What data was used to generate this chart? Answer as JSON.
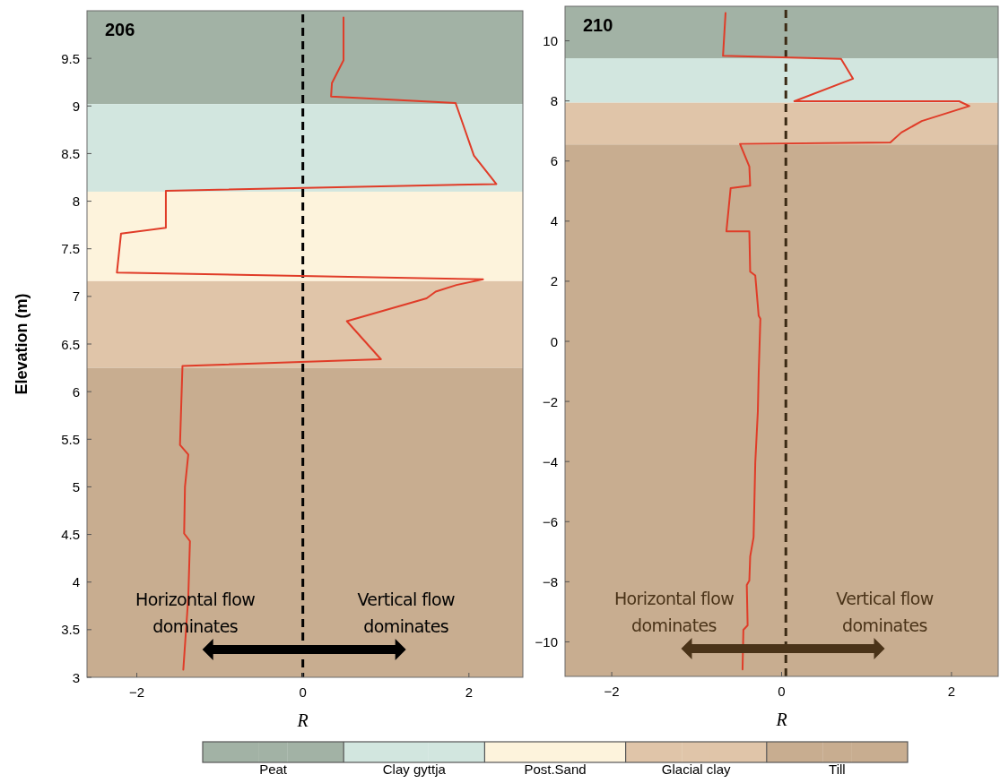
{
  "chart_data": [
    {
      "type": "line",
      "title": "206",
      "xlabel": "R",
      "ylabel": "Elevation (m)",
      "xlim": [
        -2.6,
        2.65
      ],
      "ylim": [
        3,
        10
      ],
      "xticks": [
        -2,
        0,
        2
      ],
      "yticks": [
        3,
        3.5,
        4,
        4.5,
        5,
        5.5,
        6,
        6.5,
        7,
        7.5,
        8,
        8.5,
        9,
        9.5
      ],
      "legend": "bottom",
      "series": [
        {
          "color": "#e03c28",
          "x": [
            0.49,
            0.49,
            0.35,
            0.34,
            1.84,
            1.9,
            2.06,
            2.33,
            -1.65,
            -1.65,
            -2.19,
            -2.24,
            2.17,
            1.85,
            1.6,
            1.49,
            0.53,
            0.94,
            -1.45,
            -1.48,
            -1.38,
            -1.42,
            -1.43,
            -1.36,
            -1.38,
            -1.44
          ],
          "values": [
            9.93,
            9.48,
            9.24,
            9.1,
            9.03,
            8.88,
            8.48,
            8.18,
            8.11,
            7.72,
            7.66,
            7.25,
            7.18,
            7.12,
            7.05,
            6.98,
            6.74,
            6.34,
            6.27,
            5.44,
            5.34,
            5.0,
            4.51,
            4.43,
            3.84,
            3.08
          ]
        }
      ],
      "bands": [
        {
          "axis": "y",
          "from": 9.02,
          "to": 10,
          "label": "Peat",
          "color": "#a2b2a5"
        },
        {
          "axis": "y",
          "from": 8.1,
          "to": 9.02,
          "label": "Clay gyttja",
          "color": "#d2e6df"
        },
        {
          "axis": "y",
          "from": 7.16,
          "to": 8.1,
          "label": "Post.Sand",
          "color": "#fdf3dc"
        },
        {
          "axis": "y",
          "from": 6.25,
          "to": 7.16,
          "label": "Glacial clay",
          "color": "#e0c5a9"
        },
        {
          "axis": "y",
          "from": 3,
          "to": 6.25,
          "label": "Till",
          "color": "#c8ad90"
        }
      ],
      "ref_lines": [
        {
          "axis": "x",
          "value": 0,
          "color": "#000000",
          "line_style": "dashed"
        }
      ],
      "annotations": [
        "Horizontal flow dominates",
        "Vertical flow dominates"
      ]
    },
    {
      "type": "line",
      "title": "210",
      "xlabel": "R",
      "xlim": [
        -2.55,
        2.55
      ],
      "ylim": [
        -11.15,
        11.15
      ],
      "xticks": [
        -2,
        0,
        2
      ],
      "yticks": [
        -10,
        -8,
        -6,
        -4,
        -2,
        0,
        2,
        4,
        6,
        8,
        10
      ],
      "series": [
        {
          "color": "#e03c28",
          "x": [
            -0.66,
            -0.69,
            0.7,
            0.84,
            0.15,
            2.09,
            2.21,
            1.65,
            1.41,
            1.28,
            -0.49,
            -0.38,
            -0.37,
            -0.6,
            -0.65,
            -0.38,
            -0.37,
            -0.31,
            -0.27,
            -0.25,
            -0.27,
            -0.28,
            -0.31,
            -0.33,
            -0.37,
            -0.38,
            -0.41,
            -0.4,
            -0.45,
            -0.46
          ],
          "values": [
            10.93,
            9.5,
            9.4,
            8.74,
            7.99,
            7.99,
            7.83,
            7.33,
            6.95,
            6.62,
            6.57,
            5.82,
            5.18,
            5.1,
            3.66,
            3.66,
            2.32,
            2.19,
            0.85,
            0.75,
            -1.08,
            -2.34,
            -4.03,
            -6.52,
            -7.16,
            -7.96,
            -8.11,
            -9.45,
            -9.6,
            -10.92
          ]
        }
      ],
      "bands": [
        {
          "axis": "y",
          "from": 9.42,
          "to": 11.15,
          "color": "#a2b2a5"
        },
        {
          "axis": "y",
          "from": 7.94,
          "to": 9.42,
          "color": "#d2e6df"
        },
        {
          "axis": "y",
          "from": 6.55,
          "to": 7.94,
          "color": "#e0c5a9"
        },
        {
          "axis": "y",
          "from": -11.15,
          "to": 6.55,
          "color": "#c8ad90"
        }
      ],
      "ref_lines": [
        {
          "axis": "x",
          "value": 0.05,
          "color": "#3b2a14",
          "line_style": "dashed"
        }
      ],
      "annotations": [
        "Horizontal flow dominates",
        "Vertical flow dominates"
      ]
    }
  ]
}
